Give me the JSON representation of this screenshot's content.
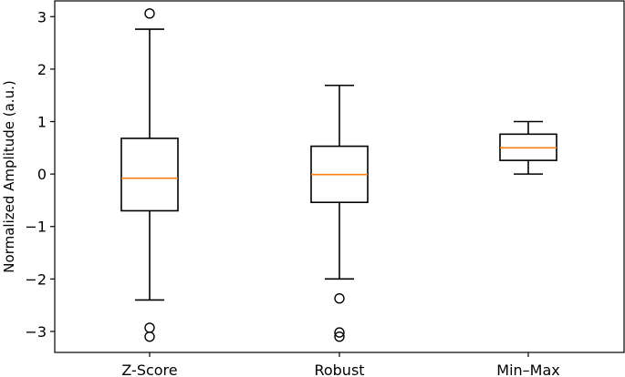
{
  "chart_data": {
    "type": "box",
    "title": "",
    "xlabel": "",
    "ylabel": "Normalized Amplitude (a.u.)",
    "ylim": [
      -3.4,
      3.3
    ],
    "yticks": [
      3,
      2,
      1,
      0,
      -1,
      -2,
      -3
    ],
    "ytick_labels": [
      "3",
      "2",
      "1",
      "0",
      "−1",
      "−2",
      "−3"
    ],
    "categories": [
      "Z-Score",
      "Robust",
      "Min–Max"
    ],
    "grid": false,
    "colors": {
      "box": "#000000",
      "median": "#ff7f0e",
      "flier": "#000000"
    },
    "boxes": [
      {
        "name": "Z-Score",
        "whisker_low": -2.4,
        "q1": -0.7,
        "median": -0.08,
        "q3": 0.68,
        "whisker_high": 2.76,
        "outliers": [
          3.06,
          -2.93,
          -3.1
        ]
      },
      {
        "name": "Robust",
        "whisker_low": -2.0,
        "q1": -0.54,
        "median": -0.01,
        "q3": 0.53,
        "whisker_high": 1.69,
        "outliers": [
          -2.37,
          -3.02,
          -3.1
        ]
      },
      {
        "name": "Min–Max",
        "whisker_low": 0.0,
        "q1": 0.26,
        "median": 0.5,
        "q3": 0.76,
        "whisker_high": 1.0,
        "outliers": []
      }
    ]
  }
}
